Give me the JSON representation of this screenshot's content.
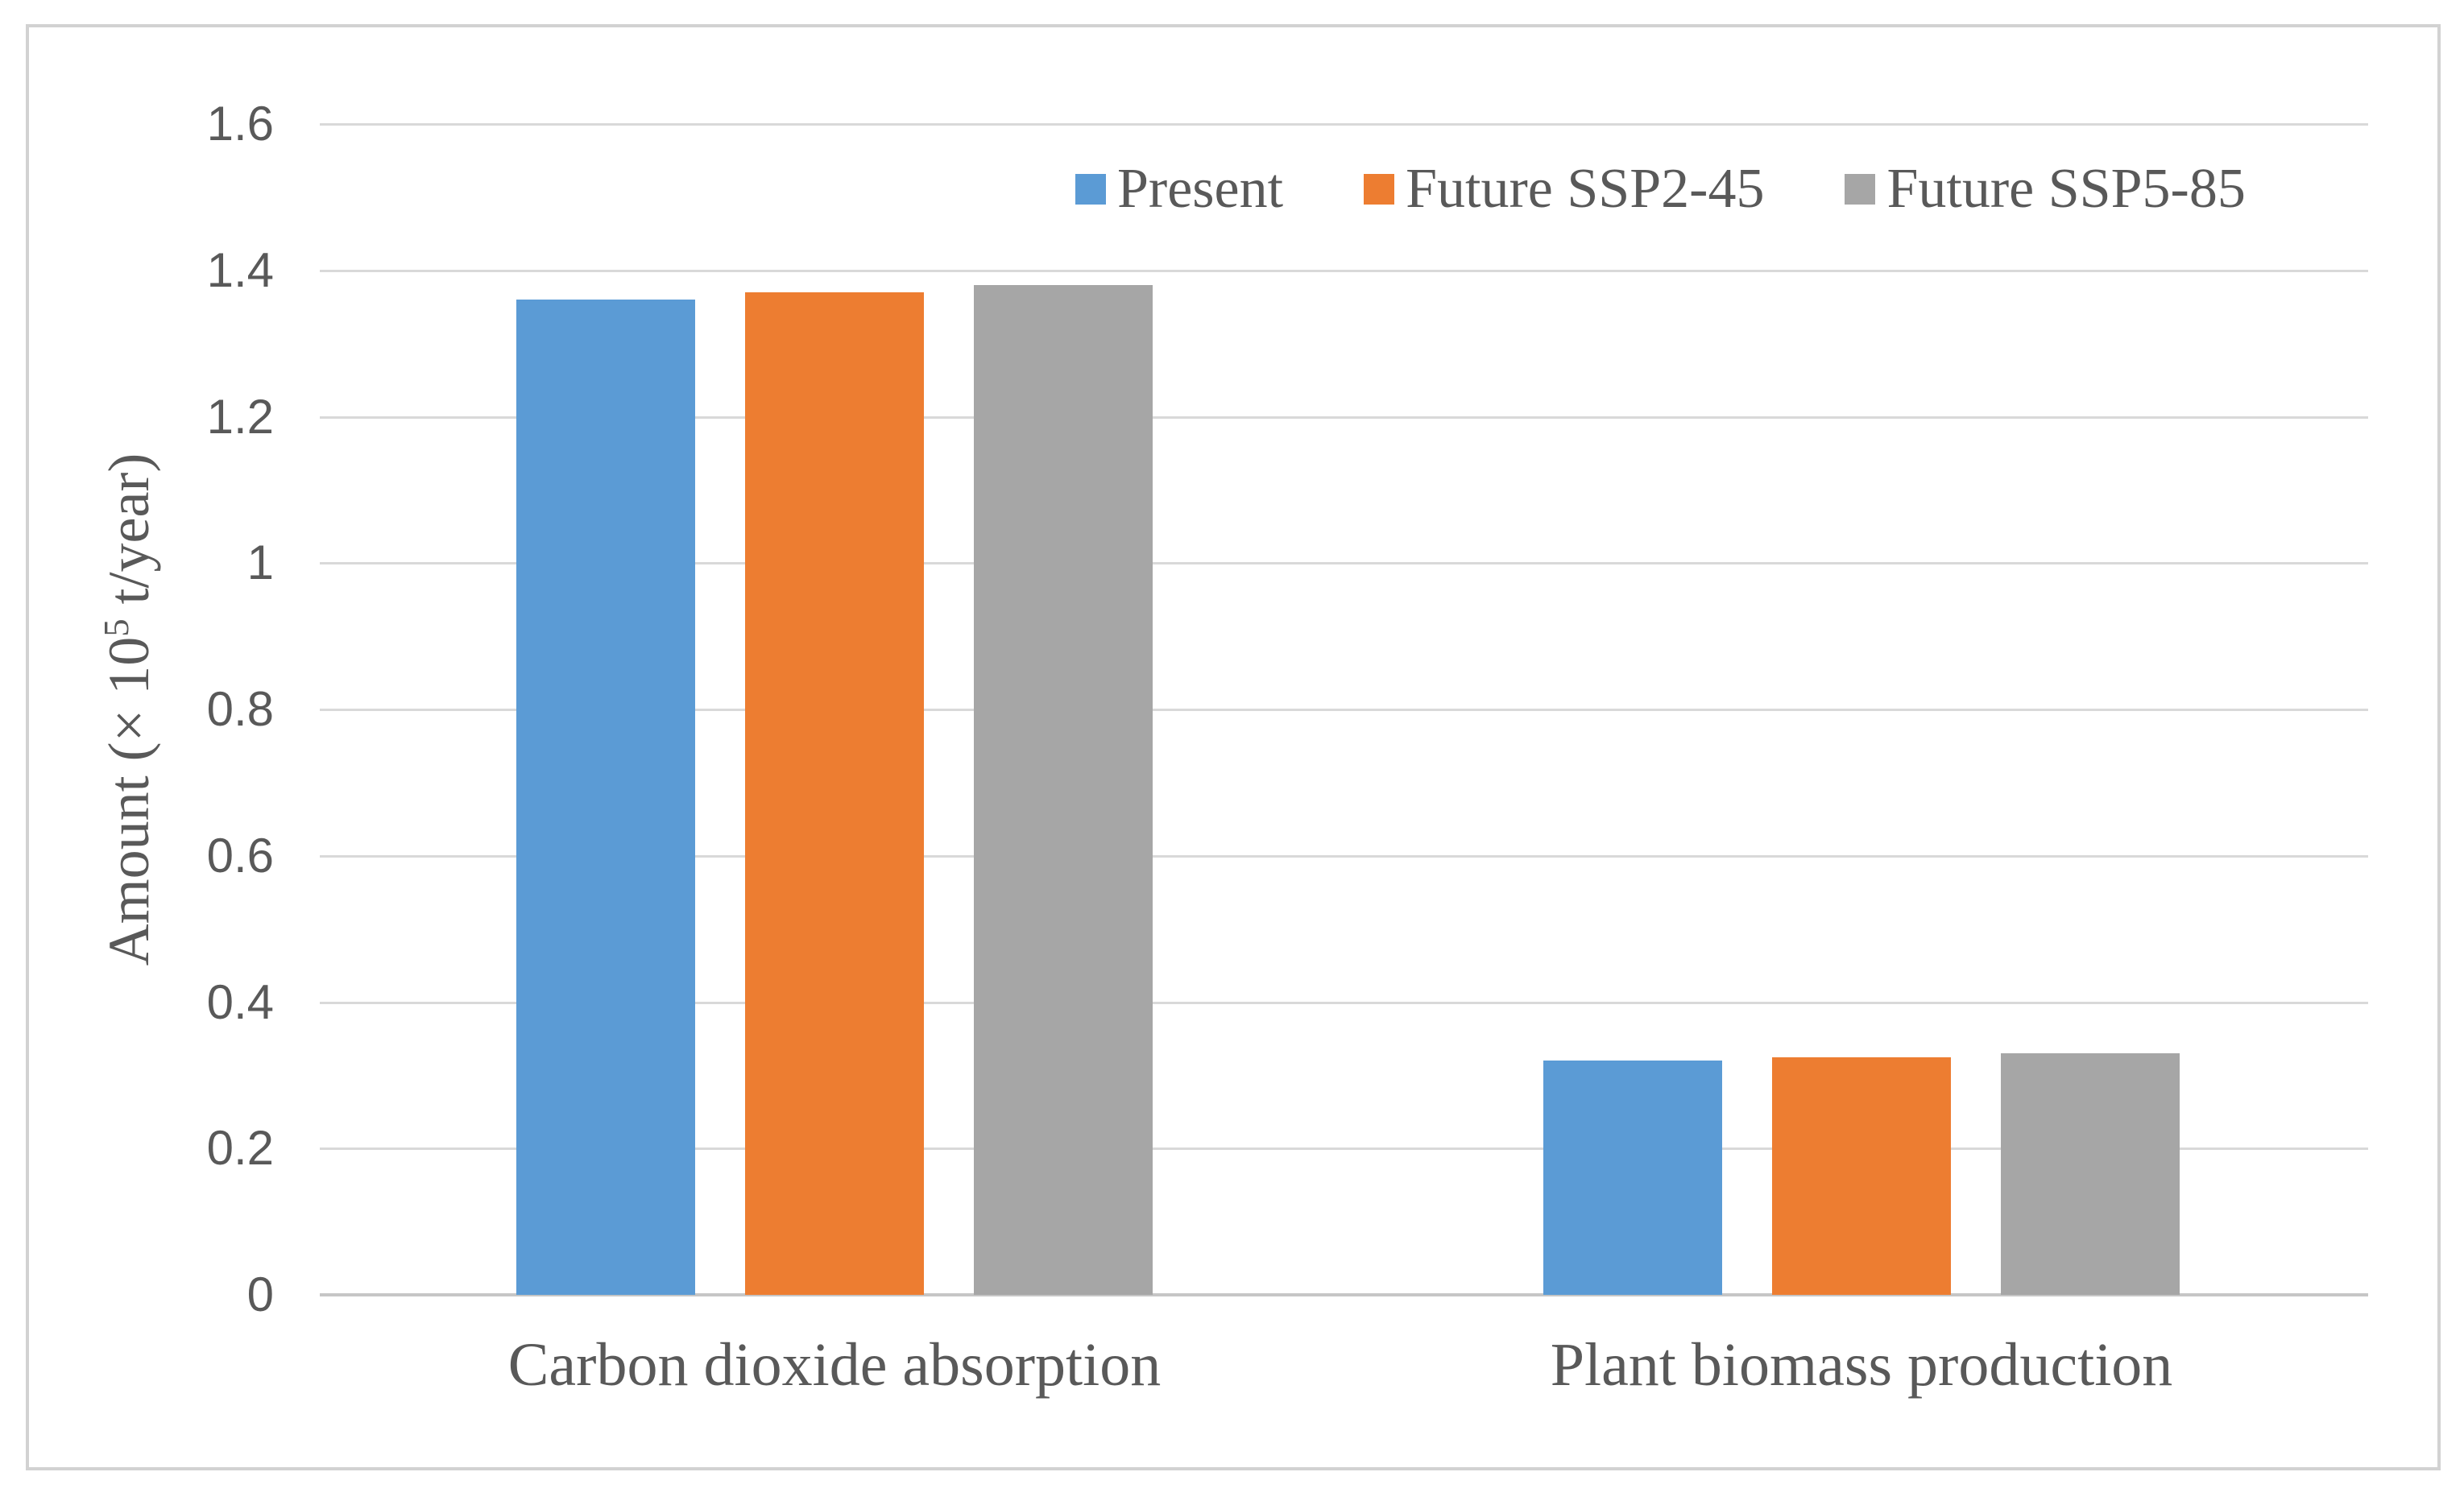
{
  "chart_data": {
    "type": "bar",
    "title": "",
    "categories": [
      "Carbon dioxide absorption",
      "Plant biomass production"
    ],
    "series": [
      {
        "name": "Present",
        "values": [
          1.36,
          0.32
        ]
      },
      {
        "name": "Future SSP2-45",
        "values": [
          1.37,
          0.325
        ]
      },
      {
        "name": "Future SSP5-85",
        "values": [
          1.38,
          0.33
        ]
      }
    ],
    "colors": {
      "Present": "#5B9BD5",
      "Future SSP2-45": "#ED7D31",
      "Future SSP5-85": "#A6A6A6"
    },
    "ylabel": {
      "prefix": "Amount (× 10",
      "sup": "5",
      "suffix": " t/year)"
    },
    "ytick_labels": [
      "0",
      "0.2",
      "0.4",
      "0.6",
      "0.8",
      "1",
      "1.2",
      "1.4",
      "1.6"
    ],
    "ylim": [
      0,
      1.6
    ],
    "ytick_step": 0.2,
    "grid": true,
    "legend_position": "top-right",
    "style": {
      "grid_color": "#D9D9D9",
      "axis_color": "#C6C6C6",
      "text_color": "#595959",
      "border_color": "#D2D2D2",
      "background": "#FFFFFF"
    }
  }
}
